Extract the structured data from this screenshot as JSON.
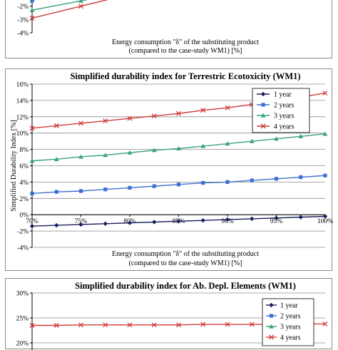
{
  "chart_data": [
    {
      "type": "line",
      "title": "",
      "xlabel": "Energy consumption \"δ\" of the substituting product",
      "xlabel2": "(compared to the case-study WM1) [%]",
      "yticks": [
        "-2%",
        "-3%",
        "-4%"
      ],
      "visible_partial": true,
      "series": [
        {
          "name": "",
          "color": "#3d6fd1",
          "marker": "square",
          "x": [
            70,
            72
          ],
          "y": [
            -1.6,
            -1.0
          ]
        },
        {
          "name": "",
          "color": "#3aa37a",
          "marker": "triangle",
          "x": [
            70,
            75,
            78
          ],
          "y": [
            -2.3,
            -1.6,
            -1.2
          ]
        },
        {
          "name": "",
          "color": "#d03a3a",
          "marker": "x",
          "x": [
            70,
            75,
            80
          ],
          "y": [
            -2.9,
            -2.0,
            -1.1
          ]
        }
      ]
    },
    {
      "type": "line",
      "title": "Simplified durability index for Terrestric Ecotoxicity (WM1)",
      "xlabel": "Energy consumption \"δ\" of the substituting product",
      "xlabel2": "(compared to the case-study WM1) [%]",
      "ylabel": "Simplified Durability Index [%]",
      "ylim": [
        -4,
        16
      ],
      "yticks": [
        "-4%",
        "-2%",
        "0%",
        "2%",
        "4%",
        "6%",
        "8%",
        "10%",
        "12%",
        "14%",
        "16%"
      ],
      "xticks": [
        "70%",
        "75%",
        "80%",
        "85%",
        "90%",
        "95%",
        "100%"
      ],
      "legend": "top-right",
      "series": [
        {
          "name": "1 year",
          "color": "#1b1f5e",
          "marker": "diamond",
          "x": [
            70,
            72.5,
            75,
            77.5,
            80,
            82.5,
            85,
            87.5,
            90,
            92.5,
            95,
            97.5,
            100
          ],
          "y": [
            -1.4,
            -1.3,
            -1.2,
            -1.1,
            -1.0,
            -0.9,
            -0.8,
            -0.7,
            -0.6,
            -0.5,
            -0.4,
            -0.3,
            -0.2
          ]
        },
        {
          "name": "2 years",
          "color": "#3d6fd1",
          "marker": "square",
          "x": [
            70,
            72.5,
            75,
            77.5,
            80,
            82.5,
            85,
            87.5,
            90,
            92.5,
            95,
            97.5,
            100
          ],
          "y": [
            2.6,
            2.8,
            2.9,
            3.1,
            3.3,
            3.5,
            3.7,
            3.9,
            4.0,
            4.2,
            4.4,
            4.6,
            4.8
          ]
        },
        {
          "name": "3 years",
          "color": "#3aa37a",
          "marker": "triangle",
          "x": [
            70,
            72.5,
            75,
            77.5,
            80,
            82.5,
            85,
            87.5,
            90,
            92.5,
            95,
            97.5,
            100
          ],
          "y": [
            6.6,
            6.8,
            7.1,
            7.3,
            7.6,
            7.9,
            8.1,
            8.4,
            8.7,
            9.0,
            9.3,
            9.6,
            9.9
          ]
        },
        {
          "name": "4 years",
          "color": "#d03a3a",
          "marker": "x",
          "x": [
            70,
            72.5,
            75,
            77.5,
            80,
            82.5,
            85,
            87.5,
            90,
            92.5,
            95,
            97.5,
            100
          ],
          "y": [
            10.6,
            10.9,
            11.2,
            11.5,
            11.8,
            12.1,
            12.4,
            12.8,
            13.1,
            13.5,
            13.9,
            14.4,
            14.9
          ]
        }
      ]
    },
    {
      "type": "line",
      "title": "Simplified durability index for Ab. Depl. Elements (WM1)",
      "ylim": [
        15,
        30
      ],
      "yticks": [
        "30%",
        "25%",
        "20%"
      ],
      "legend": "top-right",
      "visible_partial": true,
      "series": [
        {
          "name": "1 year",
          "color": "#1b1f5e",
          "marker": "diamond",
          "x": [],
          "y": []
        },
        {
          "name": "2 years",
          "color": "#3d6fd1",
          "marker": "square",
          "x": [],
          "y": []
        },
        {
          "name": "3 years",
          "color": "#3aa37a",
          "marker": "triangle",
          "x": [],
          "y": []
        },
        {
          "name": "4 years",
          "color": "#d03a3a",
          "marker": "x",
          "x": [
            70,
            72.5,
            75,
            77.5,
            80,
            82.5,
            85,
            87.5,
            90,
            92.5,
            95,
            97.5,
            100
          ],
          "y": [
            23.5,
            23.5,
            23.6,
            23.6,
            23.6,
            23.6,
            23.6,
            23.7,
            23.7,
            23.7,
            23.7,
            23.8,
            23.8
          ]
        }
      ]
    }
  ]
}
